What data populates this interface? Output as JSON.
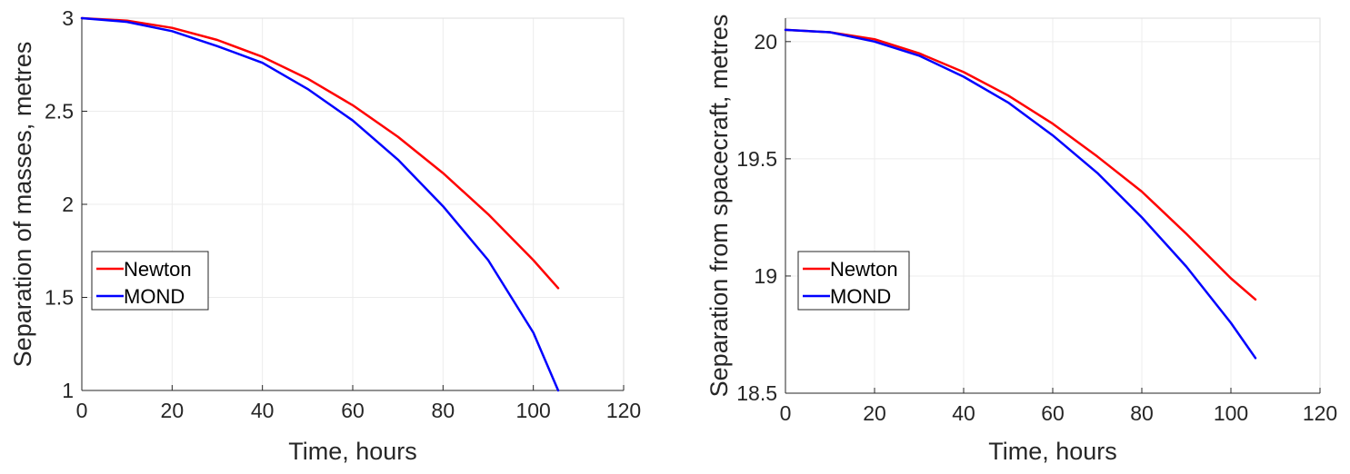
{
  "chart_data": [
    {
      "type": "line",
      "xlabel": "Time, hours",
      "ylabel": "Separation of masses, metres",
      "xlim": [
        0,
        120
      ],
      "ylim": [
        1,
        3
      ],
      "xticks": [
        0,
        20,
        40,
        60,
        80,
        100,
        120
      ],
      "yticks": [
        1,
        1.5,
        2,
        2.5,
        3
      ],
      "xtick_labels": [
        "0",
        "20",
        "40",
        "60",
        "80",
        "100",
        "120"
      ],
      "ytick_labels": [
        "1",
        "1.5",
        "2",
        "2.5",
        "3"
      ],
      "grid": true,
      "legend_position": "center-left",
      "series": [
        {
          "name": "Newton",
          "color": "#ff0000",
          "x": [
            0,
            10,
            20,
            30,
            40,
            50,
            60,
            70,
            80,
            90,
            100,
            105.5
          ],
          "y": [
            3.0,
            2.987,
            2.948,
            2.883,
            2.792,
            2.675,
            2.532,
            2.363,
            2.168,
            1.947,
            1.7,
            1.55
          ]
        },
        {
          "name": "MOND",
          "color": "#0000ff",
          "x": [
            0,
            10,
            20,
            30,
            40,
            50,
            60,
            70,
            80,
            90,
            100,
            105.5
          ],
          "y": [
            3.0,
            2.98,
            2.93,
            2.85,
            2.76,
            2.62,
            2.45,
            2.24,
            1.99,
            1.7,
            1.31,
            1.0
          ]
        }
      ]
    },
    {
      "type": "line",
      "xlabel": "Time, hours",
      "ylabel": "Separation from spacecraft, metres",
      "xlim": [
        0,
        120
      ],
      "ylim": [
        18.5,
        20.1
      ],
      "xticks": [
        0,
        20,
        40,
        60,
        80,
        100,
        120
      ],
      "yticks": [
        18.5,
        19,
        19.5,
        20
      ],
      "xtick_labels": [
        "0",
        "20",
        "40",
        "60",
        "80",
        "100",
        "120"
      ],
      "ytick_labels": [
        "18.5",
        "19",
        "19.5",
        "20"
      ],
      "grid": true,
      "legend_position": "center-left",
      "series": [
        {
          "name": "Newton",
          "color": "#ff0000",
          "x": [
            0,
            10,
            20,
            30,
            40,
            50,
            60,
            70,
            80,
            90,
            100,
            105.5
          ],
          "y": [
            20.05,
            20.04,
            20.01,
            19.95,
            19.87,
            19.77,
            19.65,
            19.51,
            19.36,
            19.18,
            18.99,
            18.9
          ]
        },
        {
          "name": "MOND",
          "color": "#0000ff",
          "x": [
            0,
            10,
            20,
            30,
            40,
            50,
            60,
            70,
            80,
            90,
            100,
            105.5
          ],
          "y": [
            20.05,
            20.04,
            20.0,
            19.94,
            19.85,
            19.74,
            19.6,
            19.44,
            19.25,
            19.04,
            18.8,
            18.65
          ]
        }
      ]
    }
  ]
}
